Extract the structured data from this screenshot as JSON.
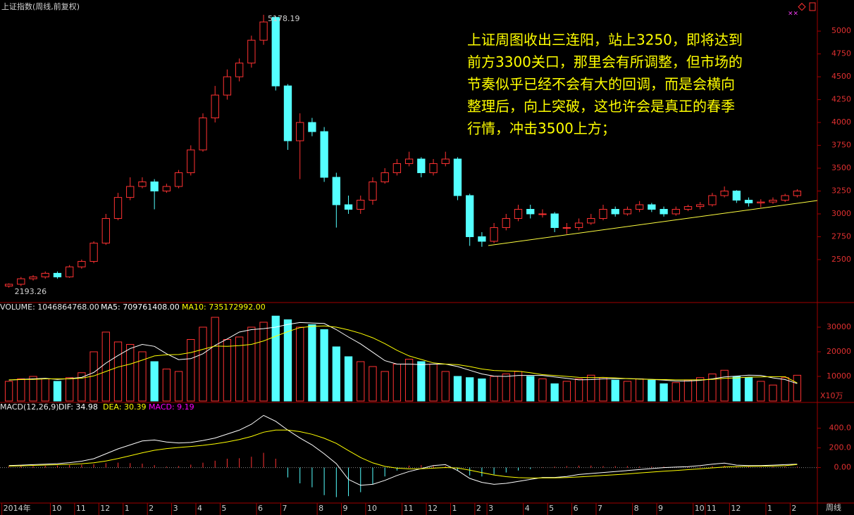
{
  "chart_data": [
    {
      "type": "candlestick",
      "title": "上证指数(周线,前复权)",
      "period": "周线",
      "categories": [
        "2014年",
        null,
        null,
        null,
        "10",
        null,
        "11",
        null,
        "12",
        null,
        "1",
        null,
        "2",
        null,
        "3",
        null,
        "4",
        null,
        "5",
        null,
        null,
        "6",
        null,
        "7",
        null,
        null,
        "8",
        null,
        "9",
        null,
        "10",
        null,
        null,
        "11",
        null,
        "12",
        null,
        "1",
        null,
        "2",
        "3",
        null,
        null,
        "4",
        null,
        "5",
        null,
        "6",
        null,
        "7",
        null,
        null,
        "8",
        null,
        "9",
        null,
        null,
        "10",
        "11",
        null,
        "12",
        null,
        null,
        "1",
        null,
        "2"
      ],
      "open": [
        2210,
        2230,
        2290,
        2310,
        2350,
        2310,
        2420,
        2480,
        2680,
        2950,
        3180,
        3300,
        3350,
        3250,
        3300,
        3450,
        3700,
        4050,
        4300,
        4500,
        4650,
        4900,
        5150,
        4400,
        3800,
        4000,
        3900,
        3400,
        3100,
        3050,
        3150,
        3350,
        3450,
        3550,
        3600,
        3450,
        3550,
        3600,
        3200,
        2750,
        2700,
        2850,
        2950,
        3050,
        3000,
        3000,
        2850,
        2850,
        2900,
        2950,
        3050,
        3000,
        3050,
        3100,
        3050,
        3000,
        3050,
        3080,
        3100,
        3200,
        3250,
        3150,
        3120,
        3130,
        3150,
        3200
      ],
      "high": [
        2240,
        2310,
        2330,
        2370,
        2370,
        2440,
        2500,
        2700,
        3000,
        3230,
        3400,
        3400,
        3380,
        3330,
        3480,
        3750,
        4100,
        4400,
        4580,
        4700,
        4950,
        5178.19,
        5160,
        4420,
        4100,
        4050,
        3950,
        3450,
        3200,
        3200,
        3400,
        3500,
        3600,
        3680,
        3620,
        3600,
        3680,
        3620,
        3220,
        2800,
        2900,
        3000,
        3100,
        3100,
        3050,
        3020,
        2900,
        2950,
        3000,
        3100,
        3080,
        3080,
        3140,
        3120,
        3080,
        3080,
        3100,
        3130,
        3230,
        3300,
        3260,
        3180,
        3160,
        3180,
        3220,
        3270
      ],
      "low": [
        2193.26,
        2210,
        2270,
        2290,
        2290,
        2300,
        2400,
        2460,
        2660,
        2930,
        3150,
        3280,
        3050,
        3230,
        3280,
        3420,
        3680,
        4000,
        4250,
        4450,
        4600,
        4850,
        4350,
        3700,
        3380,
        3850,
        3350,
        2850,
        3000,
        3000,
        3100,
        3330,
        3420,
        3520,
        3400,
        3420,
        3520,
        3150,
        2650,
        2640,
        2680,
        2820,
        2920,
        2950,
        2960,
        2800,
        2780,
        2820,
        2880,
        2930,
        2970,
        2980,
        3020,
        3020,
        2970,
        2980,
        3030,
        3050,
        3080,
        3180,
        3120,
        3080,
        3070,
        3110,
        3130,
        3180
      ],
      "close": [
        2230,
        2290,
        2310,
        2350,
        2310,
        2420,
        2480,
        2680,
        2950,
        3180,
        3300,
        3350,
        3250,
        3300,
        3450,
        3700,
        4050,
        4300,
        4500,
        4650,
        4900,
        5100,
        4400,
        3800,
        4000,
        3900,
        3400,
        3100,
        3050,
        3150,
        3350,
        3450,
        3550,
        3600,
        3450,
        3550,
        3600,
        3200,
        2750,
        2700,
        2850,
        2950,
        3050,
        3000,
        3000,
        2850,
        2850,
        2900,
        2950,
        3050,
        3000,
        3050,
        3100,
        3050,
        3000,
        3050,
        3080,
        3100,
        3200,
        3250,
        3150,
        3120,
        3130,
        3150,
        3200,
        3250
      ],
      "up_color": "#ff3232",
      "down_color": "#54ffff",
      "ylim": [
        2030,
        5340
      ],
      "yticks": [
        2500,
        2750,
        3000,
        3250,
        3500,
        3750,
        4000,
        4250,
        4500,
        4750,
        5000
      ],
      "annotation": [
        "上证周图收出三连阳，站上3250，即将达到",
        "前方3300关口，那里会有所调整，但市场的",
        "节奏似乎已经不会有大的回调，而是会横向",
        "整理后，向上突破，这也许会是真正的春季",
        "行情，冲击3500上方；"
      ]
    },
    {
      "type": "bar",
      "title": "VOLUME: 1046864768.00",
      "unit": "X10万",
      "values": [
        8000,
        9000,
        10000,
        9000,
        8000,
        9500,
        11500,
        20000,
        28000,
        24000,
        23000,
        20000,
        16000,
        13000,
        12000,
        25000,
        30000,
        34000,
        25000,
        26000,
        30000,
        32000,
        34500,
        33000,
        30000,
        31000,
        29000,
        22000,
        18000,
        16000,
        14000,
        12000,
        15000,
        17000,
        16000,
        15000,
        12000,
        10000,
        9500,
        9000,
        10000,
        11000,
        12000,
        10000,
        9000,
        7000,
        8000,
        9000,
        10500,
        9500,
        8500,
        8000,
        9000,
        8500,
        7000,
        7500,
        8500,
        9500,
        11000,
        12500,
        10000,
        9500,
        8000,
        6500,
        9500,
        10468.65
      ],
      "series": [
        {
          "name": "MA5: 709761408.00",
          "color": "#ffffff",
          "values": [
            8500,
            8800,
            9000,
            9200,
            8800,
            9100,
            9600,
            11600,
            15400,
            18500,
            21300,
            23000,
            22200,
            19200,
            16800,
            17200,
            19200,
            22600,
            25200,
            28000,
            29000,
            29400,
            30000,
            31100,
            31900,
            31700,
            31500,
            29000,
            26000,
            23200,
            19800,
            16400,
            15000,
            15000,
            14800,
            15000,
            15000,
            14000,
            12500,
            11000,
            10100,
            10000,
            10400,
            10400,
            10400,
            9800,
            9200,
            8600,
            8700,
            9000,
            9100,
            9100,
            9000,
            8800,
            8500,
            8100,
            8100,
            8400,
            9000,
            9800,
            10100,
            10500,
            10400,
            9400,
            8700,
            7097.61
          ]
        },
        {
          "name": "MA10: 735172992.00",
          "color": "#ffff00",
          "values": [
            8600,
            8700,
            8800,
            9000,
            9000,
            9000,
            9300,
            10200,
            12000,
            13800,
            15000,
            16600,
            18300,
            18800,
            18900,
            19700,
            21000,
            22300,
            22200,
            22500,
            23000,
            24400,
            26300,
            28200,
            29800,
            30300,
            30500,
            30000,
            28900,
            27500,
            25700,
            23300,
            20600,
            18300,
            16900,
            15500,
            15000,
            14800,
            14000,
            13000,
            12400,
            12200,
            12100,
            11500,
            10700,
            10400,
            10000,
            9600,
            9500,
            9600,
            9400,
            9100,
            8900,
            8800,
            8700,
            8600,
            8600,
            8600,
            8800,
            9200,
            9400,
            9700,
            9800,
            9900,
            9900,
            7351.73
          ]
        }
      ],
      "ylim": [
        0,
        40000
      ],
      "yticks": [
        10000,
        20000,
        30000
      ]
    },
    {
      "type": "macd",
      "title": "MACD(12,26,9)",
      "series": [
        {
          "name": "DIF: 34.98",
          "color": "#ffffff",
          "values": [
            20,
            25,
            30,
            35,
            40,
            50,
            65,
            90,
            140,
            190,
            230,
            270,
            280,
            260,
            250,
            255,
            275,
            300,
            340,
            380,
            440,
            530,
            470,
            380,
            300,
            230,
            140,
            40,
            -120,
            -180,
            -170,
            -130,
            -80,
            -40,
            -10,
            20,
            30,
            -30,
            -110,
            -150,
            -170,
            -160,
            -140,
            -120,
            -100,
            -100,
            -90,
            -70,
            -60,
            -50,
            -40,
            -30,
            -20,
            -10,
            0,
            5,
            10,
            20,
            35,
            45,
            25,
            20,
            20,
            25,
            30,
            34.98
          ]
        },
        {
          "name": "DEA: 30.39",
          "color": "#ffff00",
          "values": [
            15,
            18,
            22,
            26,
            29,
            33,
            39,
            49,
            67,
            92,
            120,
            150,
            176,
            193,
            204,
            214,
            226,
            241,
            261,
            285,
            316,
            359,
            381,
            381,
            365,
            338,
            298,
            246,
            173,
            102,
            48,
            12,
            -6,
            -13,
            -12,
            -6,
            1,
            -5,
            -26,
            -51,
            -75,
            -92,
            -102,
            -106,
            -105,
            -104,
            -101,
            -95,
            -88,
            -80,
            -72,
            -64,
            -55,
            -46,
            -37,
            -29,
            -21,
            -13,
            -3,
            6,
            10,
            12,
            14,
            16,
            19,
            30.39
          ]
        },
        {
          "name": "MACD: 9.19",
          "color": "#ff00ff",
          "values": [
            10,
            15,
            15,
            18,
            20,
            25,
            30,
            35,
            45,
            50,
            45,
            40,
            25,
            10,
            15,
            30,
            50,
            70,
            90,
            95,
            110,
            150,
            90,
            -100,
            -160,
            -200,
            -280,
            -300,
            -290,
            -250,
            -170,
            -90,
            -30,
            20,
            25,
            20,
            15,
            -30,
            -80,
            -90,
            -70,
            -50,
            -30,
            -15,
            5,
            10,
            15,
            20,
            20,
            15,
            15,
            15,
            10,
            10,
            10,
            8,
            12,
            10,
            15,
            20,
            10,
            8,
            5,
            8,
            9,
            9.19
          ]
        }
      ],
      "ylim": [
        -360,
        640
      ],
      "yticks": [
        {
          "value": 0,
          "label": "0.00"
        },
        {
          "value": 200,
          "label": "200.0"
        },
        {
          "value": 400,
          "label": "400.0"
        }
      ]
    }
  ]
}
